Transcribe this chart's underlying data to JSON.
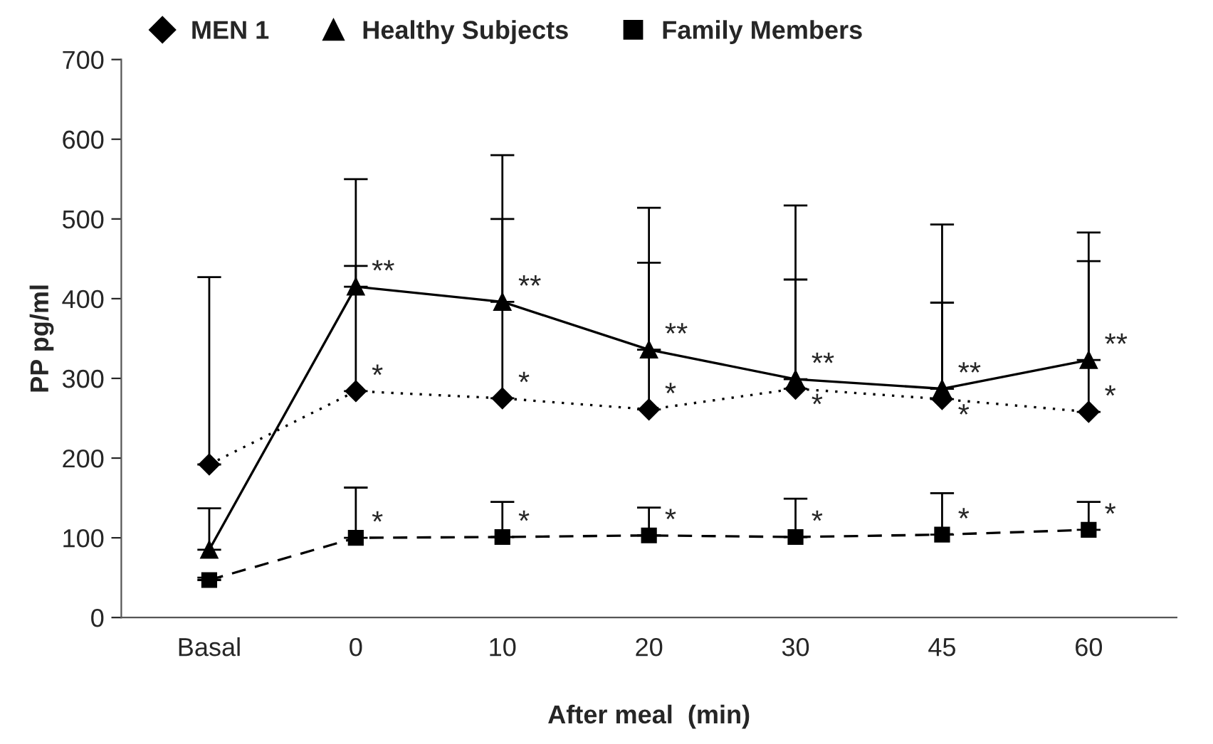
{
  "chart_data": {
    "type": "line",
    "xlabel": "After meal  (min)",
    "ylabel": "PP pg/ml",
    "categories": [
      "Basal",
      "0",
      "10",
      "20",
      "30",
      "45",
      "60"
    ],
    "series": [
      {
        "name": "MEN 1",
        "color": "#000000",
        "marker": "diamond",
        "line_style": "dotted",
        "values": [
          192,
          284,
          275,
          261,
          287,
          274,
          258
        ],
        "errors": [
          [
            192,
            427
          ],
          [
            284,
            441
          ],
          [
            275,
            500
          ],
          [
            261,
            445
          ],
          [
            287,
            424
          ],
          [
            274,
            395
          ],
          [
            258,
            447
          ]
        ]
      },
      {
        "name": "Healthy Subjects",
        "color": "#000000",
        "marker": "triangle",
        "line_style": "solid",
        "values": [
          85,
          415,
          396,
          336,
          299,
          287,
          323
        ],
        "errors": [
          [
            85,
            137
          ],
          [
            415,
            550
          ],
          [
            396,
            580
          ],
          [
            336,
            514
          ],
          [
            299,
            517
          ],
          [
            287,
            493
          ],
          [
            323,
            483
          ]
        ]
      },
      {
        "name": "Family Members",
        "color": "#000000",
        "marker": "square",
        "line_style": "dashed",
        "values": [
          47,
          100,
          101,
          103,
          101,
          104,
          110
        ],
        "errors": [
          [
            47,
            50
          ],
          [
            100,
            163
          ],
          [
            101,
            145
          ],
          [
            103,
            138
          ],
          [
            101,
            149
          ],
          [
            104,
            156
          ],
          [
            110,
            145
          ]
        ]
      }
    ],
    "ylim": [
      0,
      700
    ],
    "yticks": [
      0,
      100,
      200,
      300,
      400,
      500,
      600,
      700
    ],
    "grid": false,
    "legend": "top",
    "annotations": [
      {
        "text": "*",
        "x": "0",
        "y": 284
      },
      {
        "text": "*",
        "x": "10",
        "y": 275
      },
      {
        "text": "*",
        "x": "20",
        "y": 261
      },
      {
        "text": "*",
        "x": "30",
        "y": 287
      },
      {
        "text": "*",
        "x": "45",
        "y": 274
      },
      {
        "text": "*",
        "x": "60",
        "y": 258
      },
      {
        "text": "**",
        "x": "0",
        "y": 415
      },
      {
        "text": "**",
        "x": "10",
        "y": 396
      },
      {
        "text": "**",
        "x": "20",
        "y": 336
      },
      {
        "text": "**",
        "x": "30",
        "y": 299
      },
      {
        "text": "**",
        "x": "45",
        "y": 287
      },
      {
        "text": "**",
        "x": "60",
        "y": 323
      },
      {
        "text": "*",
        "x": "0",
        "y": 100
      },
      {
        "text": "*",
        "x": "10",
        "y": 101
      },
      {
        "text": "*",
        "x": "20",
        "y": 103
      },
      {
        "text": "*",
        "x": "30",
        "y": 101
      },
      {
        "text": "*",
        "x": "45",
        "y": 104
      },
      {
        "text": "*",
        "x": "60",
        "y": 110
      }
    ]
  }
}
